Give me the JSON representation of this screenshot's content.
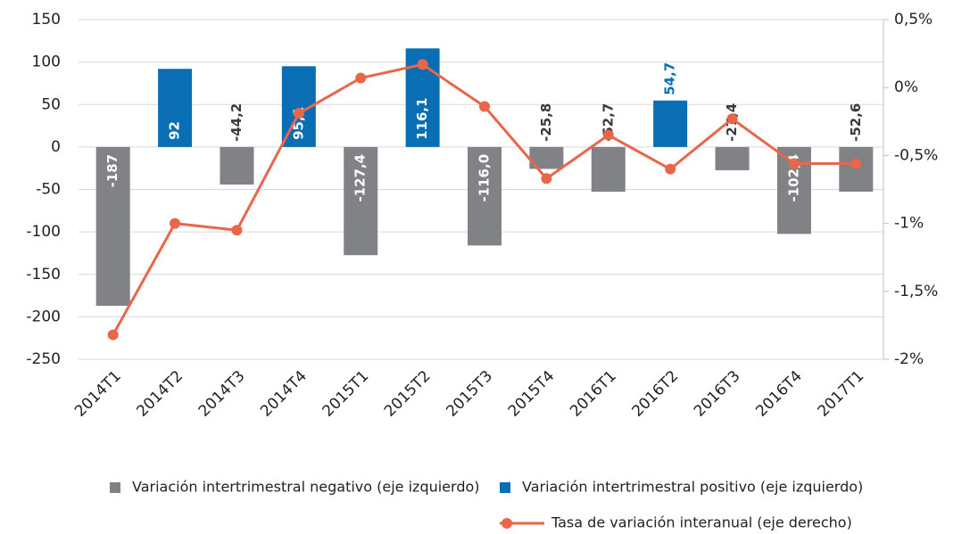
{
  "chart_data": {
    "type": "bar",
    "categories": [
      "2014T1",
      "2014T2",
      "2014T3",
      "2014T4",
      "2015T1",
      "2015T2",
      "2015T3",
      "2015T4",
      "2016T1",
      "2016T2",
      "2016T3",
      "2016T4",
      "2017T1"
    ],
    "series": [
      {
        "name": "Variación intertrimestral negativo (eje izquierdo)",
        "color": "#808285",
        "type": "bar",
        "values": [
          -187,
          null,
          -44.2,
          null,
          -127.4,
          null,
          -116.0,
          -25.8,
          -52.7,
          null,
          -27.4,
          -102.4,
          -52.6
        ],
        "value_labels": [
          "-187",
          null,
          "-44,2",
          null,
          "-127,4",
          null,
          "-116,0",
          "-25,8",
          "-52,7",
          null,
          "-27,4",
          "-102,4",
          "-52,6"
        ]
      },
      {
        "name": "Variación intertrimestral positivo (eje izquierdo)",
        "color": "#0a6eb4",
        "type": "bar",
        "values": [
          null,
          92,
          null,
          95.1,
          null,
          116.1,
          null,
          null,
          null,
          54.7,
          null,
          null,
          null
        ],
        "value_labels": [
          null,
          "92",
          null,
          "95,1",
          null,
          "116,1",
          null,
          null,
          null,
          "54,7",
          null,
          null,
          null
        ]
      },
      {
        "name": "Tasa de variación interanual (eje derecho)",
        "color": "#e8664a",
        "type": "line",
        "axis": "y2",
        "values": [
          -1.82,
          -1.0,
          -1.05,
          -0.19,
          0.07,
          0.17,
          -0.14,
          -0.67,
          -0.35,
          -0.6,
          -0.23,
          -0.56,
          -0.56
        ]
      }
    ],
    "ylim": [
      -250,
      150
    ],
    "yticks": [
      150,
      100,
      50,
      0,
      -50,
      -100,
      -150,
      -200,
      -250
    ],
    "y2lim": [
      -2,
      0.5
    ],
    "y2ticks": [
      {
        "value": 0.5,
        "label": "0,5%"
      },
      {
        "value": 0,
        "label": "0%"
      },
      {
        "value": -0.5,
        "label": "-0,5%"
      },
      {
        "value": -1,
        "label": "-1%"
      },
      {
        "value": -1.5,
        "label": "-1,5%"
      },
      {
        "value": -2,
        "label": "-2%"
      }
    ],
    "grid": true,
    "legend": "bottom"
  }
}
